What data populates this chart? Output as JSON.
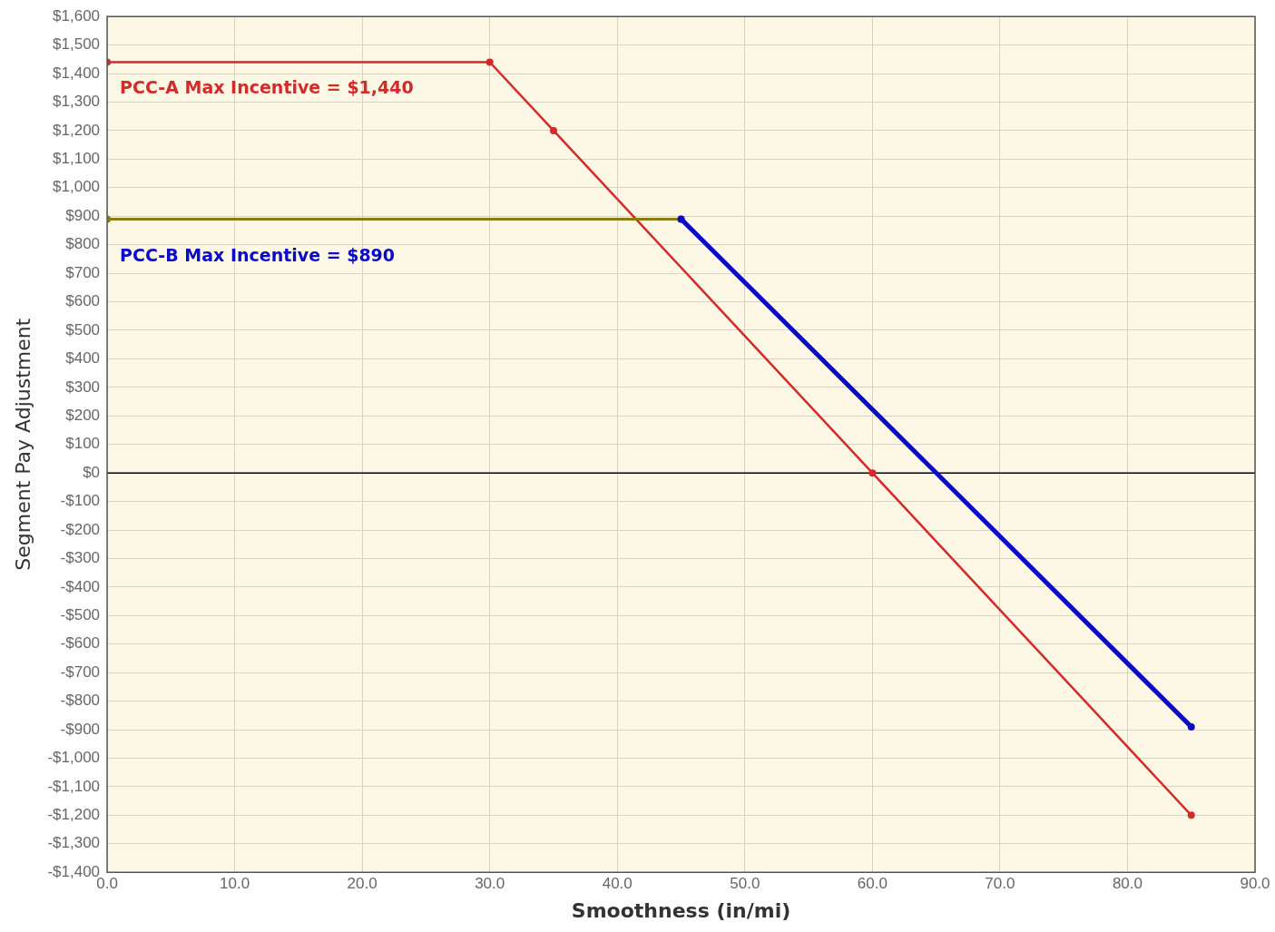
{
  "chart_data": {
    "type": "line",
    "xlabel": "Smoothness (in/mi)",
    "ylabel": "Segment Pay Adjustment",
    "series": [
      {
        "color": "#d42a2a",
        "x": [
          0,
          30,
          35,
          60,
          85
        ],
        "values": [
          1440,
          1440,
          1200,
          0,
          -1200
        ]
      },
      {
        "color": "#8a7a10",
        "x": [
          0,
          45
        ],
        "values": [
          890,
          890
        ]
      },
      {
        "color": "#0a0ac8",
        "x": [
          45,
          85
        ],
        "values": [
          890,
          -890
        ]
      }
    ],
    "xlim": [
      0,
      90
    ],
    "xticks": [
      {
        "value": 0,
        "label": "0.0"
      },
      {
        "value": 10,
        "label": "10.0"
      },
      {
        "value": 20,
        "label": "20.0"
      },
      {
        "value": 30,
        "label": "30.0"
      },
      {
        "value": 40,
        "label": "40.0"
      },
      {
        "value": 50,
        "label": "50.0"
      },
      {
        "value": 60,
        "label": "60.0"
      },
      {
        "value": 70,
        "label": "70.0"
      },
      {
        "value": 80,
        "label": "80.0"
      },
      {
        "value": 90,
        "label": "90.0"
      }
    ],
    "ylim": [
      -1400,
      1600
    ],
    "yticks": [
      {
        "value": 1600,
        "label": "$1,600"
      },
      {
        "value": 1500,
        "label": "$1,500"
      },
      {
        "value": 1400,
        "label": "$1,400"
      },
      {
        "value": 1300,
        "label": "$1,300"
      },
      {
        "value": 1200,
        "label": "$1,200"
      },
      {
        "value": 1100,
        "label": "$1,100"
      },
      {
        "value": 1000,
        "label": "$1,000"
      },
      {
        "value": 900,
        "label": "$900"
      },
      {
        "value": 800,
        "label": "$800"
      },
      {
        "value": 700,
        "label": "$700"
      },
      {
        "value": 600,
        "label": "$600"
      },
      {
        "value": 500,
        "label": "$500"
      },
      {
        "value": 400,
        "label": "$400"
      },
      {
        "value": 300,
        "label": "$300"
      },
      {
        "value": 200,
        "label": "$200"
      },
      {
        "value": 100,
        "label": "$100"
      },
      {
        "value": 0,
        "label": "$0"
      },
      {
        "value": -100,
        "label": "-$100"
      },
      {
        "value": -200,
        "label": "-$200"
      },
      {
        "value": -300,
        "label": "-$300"
      },
      {
        "value": -400,
        "label": "-$400"
      },
      {
        "value": -500,
        "label": "-$500"
      },
      {
        "value": -600,
        "label": "-$600"
      },
      {
        "value": -700,
        "label": "-$700"
      },
      {
        "value": -800,
        "label": "-$800"
      },
      {
        "value": -900,
        "label": "-$900"
      },
      {
        "value": -1000,
        "label": "-$1,000"
      },
      {
        "value": -1100,
        "label": "-$1,100"
      },
      {
        "value": -1200,
        "label": "-$1,200"
      },
      {
        "value": -1300,
        "label": "-$1,300"
      },
      {
        "value": -1400,
        "label": "-$1,400"
      }
    ],
    "ref_lines": [
      {
        "axis": "y",
        "value": 0,
        "color": "#000000"
      }
    ],
    "annotations": [
      "PCC-A Max Incentive = $1,440",
      "PCC-B Max Incentive = $890"
    ],
    "grid": true,
    "legend": false,
    "marker": "circle",
    "line_style": "solid"
  }
}
